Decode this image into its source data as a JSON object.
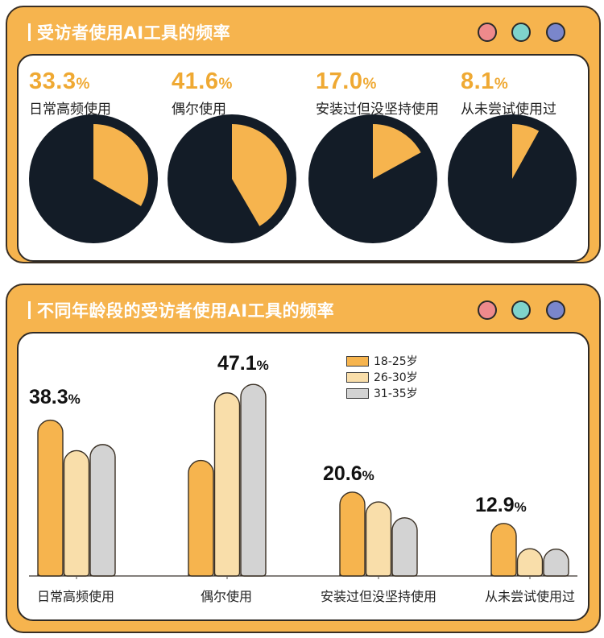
{
  "panel1": {
    "title": "受访者使用AI工具的频率",
    "window_dots": [
      {
        "name": "red-dot",
        "color": "#ee8a8c"
      },
      {
        "name": "teal-dot",
        "color": "#7fd3cb"
      },
      {
        "name": "blue-dot",
        "color": "#7a86cb"
      }
    ],
    "stats": [
      {
        "value": "33.3",
        "unit": "%",
        "label": "日常高频使用"
      },
      {
        "value": "41.6",
        "unit": "%",
        "label": "偶尔使用"
      },
      {
        "value": "17.0",
        "unit": "%",
        "label": "安装过但没坚持使用"
      },
      {
        "value": "8.1",
        "unit": "%",
        "label": "从未尝试使用过"
      }
    ]
  },
  "panel2": {
    "title": "不同年龄段的受访者使用AI工具的频率",
    "window_dots": [
      {
        "name": "red-dot",
        "color": "#ee8a8c"
      },
      {
        "name": "teal-dot",
        "color": "#7fd3cb"
      },
      {
        "name": "blue-dot",
        "color": "#7a86cb"
      }
    ],
    "legend": [
      {
        "label": "18-25岁",
        "color": "#f6b44e"
      },
      {
        "label": "26-30岁",
        "color": "#f9deaa"
      },
      {
        "label": "31-35岁",
        "color": "#d3d3d3"
      }
    ],
    "highlights": [
      {
        "value": "38.3",
        "unit": "%"
      },
      {
        "value": "47.1",
        "unit": "%"
      },
      {
        "value": "20.6",
        "unit": "%"
      },
      {
        "value": "12.9",
        "unit": "%"
      }
    ],
    "categories": [
      "日常高频使用",
      "偶尔使用",
      "安装过但没坚持使用",
      "从未尝试使用过"
    ]
  },
  "colors": {
    "accent": "#f6b44e",
    "pie_bg": "#131c27",
    "light": "#f9deaa",
    "grey": "#d3d3d3"
  },
  "chart_data": [
    {
      "type": "pie",
      "title": "受访者使用AI工具的频率",
      "categories": [
        "日常高频使用",
        "偶尔使用",
        "安装过但没坚持使用",
        "从未尝试使用过"
      ],
      "values": [
        33.3,
        41.6,
        17.0,
        8.1
      ],
      "unit": "%",
      "note": "Each category shown as its own pie with highlighted slice"
    },
    {
      "type": "bar",
      "title": "不同年龄段的受访者使用AI工具的频率",
      "categories": [
        "日常高频使用",
        "偶尔使用",
        "安装过但没坚持使用",
        "从未尝试使用过"
      ],
      "series": [
        {
          "name": "18-25岁",
          "values": [
            38.3,
            28.4,
            20.6,
            12.9
          ]
        },
        {
          "name": "26-30岁",
          "values": [
            30.8,
            45.0,
            18.2,
            6.7
          ]
        },
        {
          "name": "31-35岁",
          "values": [
            32.3,
            47.1,
            14.3,
            6.6
          ]
        }
      ],
      "labels_shown": [
        "38.3%",
        "47.1%",
        "20.6%",
        "12.9%"
      ],
      "legend_position": "top-right",
      "grid": false,
      "unit": "%"
    }
  ]
}
